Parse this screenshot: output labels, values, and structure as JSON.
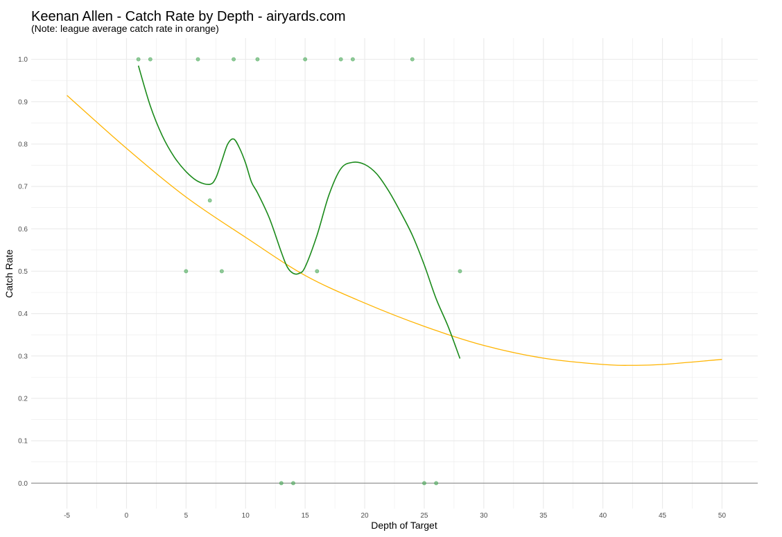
{
  "chart_data": {
    "type": "scatter",
    "title": "Keenan Allen - Catch Rate by Depth - airyards.com",
    "subtitle": "(Note: league average catch rate in orange)",
    "xlabel": "Depth of Target",
    "ylabel": "Catch Rate",
    "xlim": [
      -8,
      53
    ],
    "ylim": [
      -0.06,
      1.05
    ],
    "x_ticks": [
      -5,
      0,
      5,
      10,
      15,
      20,
      25,
      30,
      35,
      40,
      45,
      50
    ],
    "x_tick_labels": [
      "-5",
      "0",
      "5",
      "10",
      "15",
      "20",
      "25",
      "30",
      "35",
      "40",
      "45",
      "50"
    ],
    "y_ticks": [
      0,
      0.1,
      0.2,
      0.3,
      0.4,
      0.5,
      0.6,
      0.7,
      0.8,
      0.9,
      1.0
    ],
    "y_tick_labels": [
      "0.0",
      "0.1",
      "0.2",
      "0.3",
      "0.4",
      "0.5",
      "0.6",
      "0.7",
      "0.8",
      "0.9",
      "1.0"
    ],
    "grid": true,
    "colors": {
      "points": "#3aa34a",
      "player_curve": "#1a8a1a",
      "league_curve": "#ffb400",
      "zero_line": "#808080",
      "grid": "#ebebeb"
    },
    "points": [
      {
        "x": 1,
        "y": 1.0
      },
      {
        "x": 2,
        "y": 1.0
      },
      {
        "x": 6,
        "y": 1.0
      },
      {
        "x": 9,
        "y": 1.0
      },
      {
        "x": 11,
        "y": 1.0
      },
      {
        "x": 15,
        "y": 1.0
      },
      {
        "x": 18,
        "y": 1.0
      },
      {
        "x": 19,
        "y": 1.0
      },
      {
        "x": 24,
        "y": 1.0
      },
      {
        "x": 7,
        "y": 0.667
      },
      {
        "x": 5,
        "y": 0.5
      },
      {
        "x": 8,
        "y": 0.5
      },
      {
        "x": 16,
        "y": 0.5
      },
      {
        "x": 28,
        "y": 0.5
      },
      {
        "x": 13,
        "y": 0.0
      },
      {
        "x": 14,
        "y": 0.0
      },
      {
        "x": 25,
        "y": 0.0
      },
      {
        "x": 26,
        "y": 0.0
      }
    ],
    "series": [
      {
        "values": [
          [
            1,
            0.985
          ],
          [
            2,
            0.89
          ],
          [
            3,
            0.82
          ],
          [
            4,
            0.77
          ],
          [
            5,
            0.735
          ],
          [
            6,
            0.712
          ],
          [
            7,
            0.705
          ],
          [
            7.5,
            0.72
          ],
          [
            8,
            0.76
          ],
          [
            8.5,
            0.8
          ],
          [
            9,
            0.812
          ],
          [
            9.5,
            0.79
          ],
          [
            10,
            0.755
          ],
          [
            10.5,
            0.71
          ],
          [
            11,
            0.685
          ],
          [
            12,
            0.625
          ],
          [
            13,
            0.545
          ],
          [
            13.5,
            0.51
          ],
          [
            14,
            0.495
          ],
          [
            14.5,
            0.495
          ],
          [
            15,
            0.51
          ],
          [
            16,
            0.585
          ],
          [
            17,
            0.68
          ],
          [
            18,
            0.742
          ],
          [
            19,
            0.757
          ],
          [
            20,
            0.752
          ],
          [
            21,
            0.73
          ],
          [
            22,
            0.69
          ],
          [
            23,
            0.64
          ],
          [
            24,
            0.585
          ],
          [
            25,
            0.515
          ],
          [
            26,
            0.435
          ],
          [
            27,
            0.37
          ],
          [
            28,
            0.294
          ]
        ]
      },
      {
        "values": [
          [
            -5,
            0.915
          ],
          [
            0,
            0.79
          ],
          [
            5,
            0.675
          ],
          [
            10,
            0.58
          ],
          [
            15,
            0.49
          ],
          [
            20,
            0.425
          ],
          [
            25,
            0.37
          ],
          [
            30,
            0.325
          ],
          [
            35,
            0.295
          ],
          [
            40,
            0.28
          ],
          [
            42.5,
            0.278
          ],
          [
            45,
            0.28
          ],
          [
            50,
            0.292
          ]
        ]
      }
    ]
  }
}
